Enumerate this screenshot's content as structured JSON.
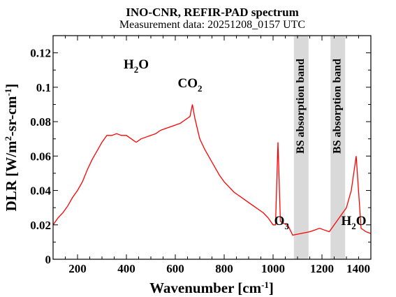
{
  "chart_data": {
    "type": "line",
    "title": "INO-CNR, REFIR-PAD spectrum",
    "subtitle": "Measurement data: 20251208_0157 UTC",
    "xlabel_main": "Wavenumber [cm",
    "xlabel_sup": "-1",
    "xlabel_end": "]",
    "ylabel_main": "DLR [W/m",
    "ylabel_sup1": "2",
    "ylabel_mid": "-sr-cm",
    "ylabel_sup2": "-1",
    "ylabel_end": "]",
    "xlim": [
      100,
      1400
    ],
    "ylim": [
      0,
      0.13
    ],
    "x_ticks": [
      200,
      400,
      600,
      800,
      1000,
      1200,
      1400
    ],
    "x_tick_labels": [
      "200",
      "400",
      "600",
      "800",
      "1000",
      "1200",
      "1400"
    ],
    "y_ticks": [
      0,
      0.02,
      0.04,
      0.06,
      0.08,
      0.1,
      0.12
    ],
    "y_tick_labels": [
      "0",
      "0.02",
      "0.04",
      "0.06",
      "0.08",
      "0.1",
      "0.12"
    ],
    "grid": false,
    "series_color": "#ff0000",
    "band_color": "#d9d9d9",
    "bands": [
      {
        "x_range": [
          1085,
          1145
        ],
        "label": "BS absorption band"
      },
      {
        "x_range": [
          1235,
          1295
        ],
        "label": "BS absorption band"
      }
    ],
    "annotations": [
      {
        "base": "H",
        "sub": "2",
        "rest": "O",
        "x": 440,
        "y": 0.111
      },
      {
        "base": "CO",
        "sub": "2",
        "rest": "",
        "x": 660,
        "y": 0.1
      },
      {
        "base": "O",
        "sub": "3",
        "rest": "",
        "x": 1035,
        "y": 0.02
      },
      {
        "base": "H",
        "sub": "2",
        "rest": "O",
        "x": 1330,
        "y": 0.02
      }
    ],
    "series": [
      {
        "x": [
          100,
          120,
          140,
          160,
          180,
          200,
          220,
          240,
          260,
          280,
          300,
          320,
          340,
          360,
          380,
          400,
          420,
          440,
          460,
          480,
          500,
          520,
          540,
          560,
          580,
          600,
          620,
          640,
          660,
          670,
          680,
          700,
          720,
          740,
          760,
          780,
          800,
          820,
          840,
          860,
          880,
          900,
          920,
          940,
          960,
          980,
          1000,
          1010,
          1020,
          1030,
          1040,
          1060,
          1080,
          1150,
          1170,
          1190,
          1210,
          1230,
          1300,
          1320,
          1340,
          1360,
          1380,
          1400
        ],
        "y": [
          0.02,
          0.024,
          0.027,
          0.031,
          0.036,
          0.04,
          0.045,
          0.052,
          0.058,
          0.063,
          0.068,
          0.072,
          0.072,
          0.073,
          0.072,
          0.072,
          0.07,
          0.068,
          0.07,
          0.071,
          0.072,
          0.073,
          0.075,
          0.076,
          0.077,
          0.078,
          0.079,
          0.081,
          0.083,
          0.09,
          0.082,
          0.07,
          0.064,
          0.059,
          0.054,
          0.049,
          0.045,
          0.042,
          0.039,
          0.037,
          0.035,
          0.033,
          0.031,
          0.029,
          0.027,
          0.024,
          0.02,
          0.02,
          0.068,
          0.022,
          0.021,
          0.02,
          0.014,
          0.016,
          0.017,
          0.018,
          0.017,
          0.016,
          0.03,
          0.04,
          0.06,
          0.018,
          0.016,
          0.015
        ]
      }
    ]
  }
}
